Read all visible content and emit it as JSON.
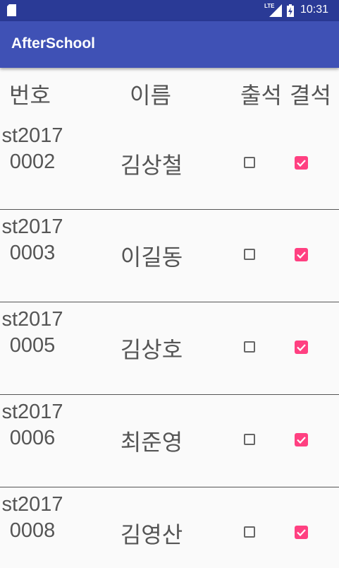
{
  "status_bar": {
    "network": "LTE",
    "time": "10:31"
  },
  "app_bar": {
    "title": "AfterSchool"
  },
  "table": {
    "headers": {
      "number": "번호",
      "name": "이름",
      "attend": "출석",
      "absent": "결석"
    },
    "rows": [
      {
        "id": "st20170002",
        "name": "김상철",
        "attend": false,
        "absent": true
      },
      {
        "id": "st20170003",
        "name": "이길동",
        "attend": false,
        "absent": true
      },
      {
        "id": "st20170005",
        "name": "김상호",
        "attend": false,
        "absent": true
      },
      {
        "id": "st20170006",
        "name": "최준영",
        "attend": false,
        "absent": true
      },
      {
        "id": "st20170008",
        "name": "김영산",
        "attend": false,
        "absent": true
      }
    ]
  },
  "colors": {
    "status_bar": "#2a3a96",
    "app_bar": "#3f51b5",
    "checkbox_checked": "#ff4081",
    "text": "#555555"
  }
}
